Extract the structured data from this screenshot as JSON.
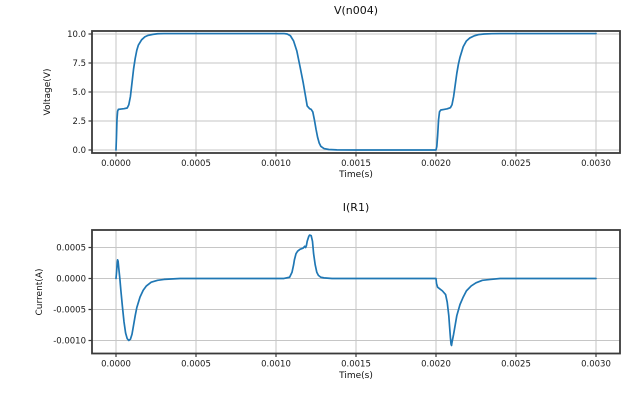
{
  "figure": {
    "background": "#ffffff",
    "line_color": "#1f77b4",
    "grid_color": "#c6c6c6",
    "spine_color": "#3a3a3a",
    "tick_label_color": "#1a1a1a"
  },
  "chart_data": [
    {
      "type": "line",
      "title": "V(n004)",
      "xlabel": "Time(s)",
      "ylabel": "Voltage(V)",
      "xlim": [
        -0.00015,
        0.00315
      ],
      "ylim": [
        -0.26,
        10.26
      ],
      "grid": true,
      "x_ticks": [
        0.0,
        0.0005,
        0.001,
        0.0015,
        0.002,
        0.0025,
        0.003
      ],
      "x_tick_labels": [
        "0.0000",
        "0.0005",
        "0.0010",
        "0.0015",
        "0.0020",
        "0.0025",
        "0.0030"
      ],
      "y_ticks": [
        0.0,
        2.5,
        5.0,
        7.5,
        10.0
      ],
      "y_tick_labels": [
        "0.0",
        "2.5",
        "5.0",
        "7.5",
        "10.0"
      ],
      "series": [
        {
          "name": "V(n004)",
          "color": "#1f77b4",
          "points": [
            [
              0.0,
              0.0
            ],
            [
              3e-06,
              1.2
            ],
            [
              6e-06,
              2.6
            ],
            [
              1e-05,
              3.35
            ],
            [
              1.5e-05,
              3.5
            ],
            [
              3e-05,
              3.53
            ],
            [
              5e-05,
              3.56
            ],
            [
              7e-05,
              3.62
            ],
            [
              8e-05,
              3.9
            ],
            [
              9e-05,
              4.6
            ],
            [
              0.0001,
              5.8
            ],
            [
              0.00011,
              7.0
            ],
            [
              0.00012,
              7.9
            ],
            [
              0.00013,
              8.6
            ],
            [
              0.00014,
              9.05
            ],
            [
              0.00016,
              9.5
            ],
            [
              0.00018,
              9.75
            ],
            [
              0.0002,
              9.88
            ],
            [
              0.00023,
              9.97
            ],
            [
              0.00026,
              10.02
            ],
            [
              0.0003,
              10.04
            ],
            [
              0.0005,
              10.04
            ],
            [
              0.0007,
              10.04
            ],
            [
              0.0009,
              10.04
            ],
            [
              0.00105,
              10.04
            ],
            [
              0.00107,
              10.0
            ],
            [
              0.00109,
              9.85
            ],
            [
              0.00111,
              9.4
            ],
            [
              0.00113,
              8.55
            ],
            [
              0.00115,
              7.2
            ],
            [
              0.00117,
              5.8
            ],
            [
              0.001185,
              4.6
            ],
            [
              0.001195,
              3.8
            ],
            [
              0.00121,
              3.56
            ],
            [
              0.00122,
              3.5
            ],
            [
              0.00123,
              3.28
            ],
            [
              0.00124,
              2.6
            ],
            [
              0.00125,
              1.8
            ],
            [
              0.00126,
              1.1
            ],
            [
              0.00127,
              0.6
            ],
            [
              0.00128,
              0.32
            ],
            [
              0.0013,
              0.12
            ],
            [
              0.00133,
              0.04
            ],
            [
              0.00138,
              0.01
            ],
            [
              0.0015,
              0.0
            ],
            [
              0.00175,
              0.0
            ],
            [
              0.002,
              0.0
            ],
            [
              0.002005,
              0.3
            ],
            [
              0.00201,
              1.2
            ],
            [
              0.002016,
              2.6
            ],
            [
              0.002022,
              3.3
            ],
            [
              0.00203,
              3.45
            ],
            [
              0.00205,
              3.5
            ],
            [
              0.00207,
              3.55
            ],
            [
              0.00209,
              3.65
            ],
            [
              0.0021,
              3.9
            ],
            [
              0.00211,
              4.6
            ],
            [
              0.00212,
              5.6
            ],
            [
              0.00213,
              6.6
            ],
            [
              0.00214,
              7.4
            ],
            [
              0.00215,
              8.0
            ],
            [
              0.00217,
              8.9
            ],
            [
              0.00219,
              9.4
            ],
            [
              0.00221,
              9.65
            ],
            [
              0.00224,
              9.85
            ],
            [
              0.00227,
              9.96
            ],
            [
              0.0023,
              10.0
            ],
            [
              0.00235,
              10.03
            ],
            [
              0.0024,
              10.04
            ],
            [
              0.0027,
              10.04
            ],
            [
              0.003,
              10.04
            ]
          ]
        }
      ]
    },
    {
      "type": "line",
      "title": "I(R1)",
      "xlabel": "Time(s)",
      "ylabel": "Current(A)",
      "xlim": [
        -0.00015,
        0.00315
      ],
      "ylim": [
        -0.00121,
        0.000782
      ],
      "grid": true,
      "x_ticks": [
        0.0,
        0.0005,
        0.001,
        0.0015,
        0.002,
        0.0025,
        0.003
      ],
      "x_tick_labels": [
        "0.0000",
        "0.0005",
        "0.0010",
        "0.0015",
        "0.0020",
        "0.0025",
        "0.0030"
      ],
      "y_ticks": [
        0.0005,
        0.0,
        -0.0005,
        -0.001
      ],
      "y_tick_labels": [
        "0.0005",
        "0.0000",
        "-0.0005",
        "-0.0010"
      ],
      "series": [
        {
          "name": "I(R1)",
          "color": "#1f77b4",
          "points": [
            [
              0.0,
              0.0
            ],
            [
              4e-06,
              0.00012
            ],
            [
              8e-06,
              0.00026
            ],
            [
              1e-05,
              0.0003
            ],
            [
              1.3e-05,
              0.00028
            ],
            [
              1.8e-05,
              0.00015
            ],
            [
              2.4e-05,
              0.0
            ],
            [
              3e-05,
              -0.00018
            ],
            [
              4e-05,
              -0.00045
            ],
            [
              5e-05,
              -0.0007
            ],
            [
              6e-05,
              -0.00088
            ],
            [
              7e-05,
              -0.00097
            ],
            [
              8e-05,
              -0.001
            ],
            [
              9e-05,
              -0.00098
            ],
            [
              0.0001,
              -0.0009
            ],
            [
              0.00011,
              -0.00075
            ],
            [
              0.00012,
              -0.0006
            ],
            [
              0.00013,
              -0.00047
            ],
            [
              0.00015,
              -0.0003
            ],
            [
              0.00017,
              -0.00019
            ],
            [
              0.00019,
              -0.00012
            ],
            [
              0.00022,
              -6e-05
            ],
            [
              0.00026,
              -3e-05
            ],
            [
              0.0003,
              -1.5e-05
            ],
            [
              0.0004,
              0.0
            ],
            [
              0.0007,
              0.0
            ],
            [
              0.001,
              0.0
            ],
            [
              0.00105,
              0.0
            ],
            [
              0.001085,
              2e-05
            ],
            [
              0.0011,
              0.0001
            ],
            [
              0.00111,
              0.00022
            ],
            [
              0.001115,
              0.0003
            ],
            [
              0.001125,
              0.0004
            ],
            [
              0.001135,
              0.00044
            ],
            [
              0.00115,
              0.00047
            ],
            [
              0.00117,
              0.00049
            ],
            [
              0.00118,
              0.00052
            ],
            [
              0.001185,
              0.0005
            ],
            [
              0.00119,
              0.00053
            ],
            [
              0.001195,
              0.0006
            ],
            [
              0.001205,
              0.00068
            ],
            [
              0.00121,
              0.0007
            ],
            [
              0.00122,
              0.00069
            ],
            [
              0.001228,
              0.0006
            ],
            [
              0.001235,
              0.0004
            ],
            [
              0.001245,
              0.00022
            ],
            [
              0.001255,
              0.0001
            ],
            [
              0.001265,
              5e-05
            ],
            [
              0.00128,
              2e-05
            ],
            [
              0.0013,
              1e-05
            ],
            [
              0.00135,
              0.0
            ],
            [
              0.0016,
              0.0
            ],
            [
              0.002,
              0.0
            ],
            [
              0.002003,
              -8e-05
            ],
            [
              0.00201,
              -0.00014
            ],
            [
              0.00202,
              -0.00016
            ],
            [
              0.00204,
              -0.0002
            ],
            [
              0.00206,
              -0.00026
            ],
            [
              0.00207,
              -0.00038
            ],
            [
              0.00208,
              -0.0006
            ],
            [
              0.002085,
              -0.00078
            ],
            [
              0.00209,
              -0.00095
            ],
            [
              0.002094,
              -0.00106
            ],
            [
              0.002097,
              -0.00108
            ],
            [
              0.0021,
              -0.00103
            ],
            [
              0.00211,
              -0.0009
            ],
            [
              0.00212,
              -0.00075
            ],
            [
              0.00213,
              -0.0006
            ],
            [
              0.00215,
              -0.00042
            ],
            [
              0.00217,
              -0.0003
            ],
            [
              0.00219,
              -0.0002
            ],
            [
              0.00222,
              -0.00012
            ],
            [
              0.00225,
              -7e-05
            ],
            [
              0.00229,
              -3e-05
            ],
            [
              0.00234,
              -1.5e-05
            ],
            [
              0.0024,
              0.0
            ],
            [
              0.0027,
              0.0
            ],
            [
              0.003,
              0.0
            ]
          ]
        }
      ]
    }
  ]
}
